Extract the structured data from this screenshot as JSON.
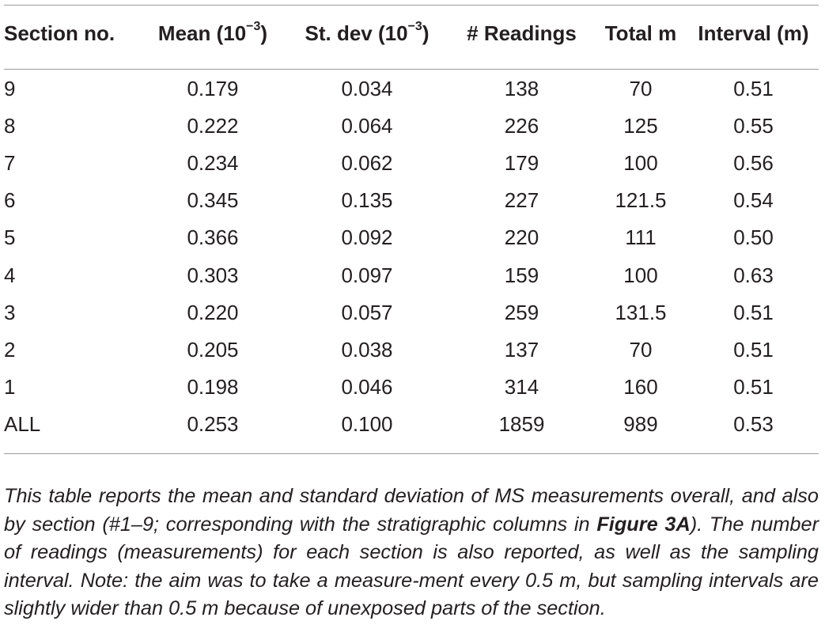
{
  "table": {
    "headers": [
      {
        "text": "Section no."
      },
      {
        "text": "Mean (10",
        "sup": "−3",
        "close": ")"
      },
      {
        "text": "St. dev (10",
        "sup": "−3",
        "close": ")"
      },
      {
        "text": "# Readings"
      },
      {
        "text": "Total m"
      },
      {
        "text": "Interval (m)"
      }
    ],
    "rows": [
      [
        "9",
        "0.179",
        "0.034",
        "138",
        "70",
        "0.51"
      ],
      [
        "8",
        "0.222",
        "0.064",
        "226",
        "125",
        "0.55"
      ],
      [
        "7",
        "0.234",
        "0.062",
        "179",
        "100",
        "0.56"
      ],
      [
        "6",
        "0.345",
        "0.135",
        "227",
        "121.5",
        "0.54"
      ],
      [
        "5",
        "0.366",
        "0.092",
        "220",
        "111",
        "0.50"
      ],
      [
        "4",
        "0.303",
        "0.097",
        "159",
        "100",
        "0.63"
      ],
      [
        "3",
        "0.220",
        "0.057",
        "259",
        "131.5",
        "0.51"
      ],
      [
        "2",
        "0.205",
        "0.038",
        "137",
        "70",
        "0.51"
      ],
      [
        "1",
        "0.198",
        "0.046",
        "314",
        "160",
        "0.51"
      ],
      [
        "ALL",
        "0.253",
        "0.100",
        "1859",
        "989",
        "0.53"
      ]
    ]
  },
  "footnote": {
    "before": "This table reports the mean and standard deviation of MS measurements overall, and also by section (#1–9; corresponding with the stratigraphic columns in ",
    "link": "Figure 3A",
    "after": "). The number of readings (measurements) for each section is also reported, as well as the sampling interval. Note: the aim was to take a measure-ment every 0.5 m, but sampling intervals are slightly wider than 0.5 m because of unexposed parts of the section."
  }
}
